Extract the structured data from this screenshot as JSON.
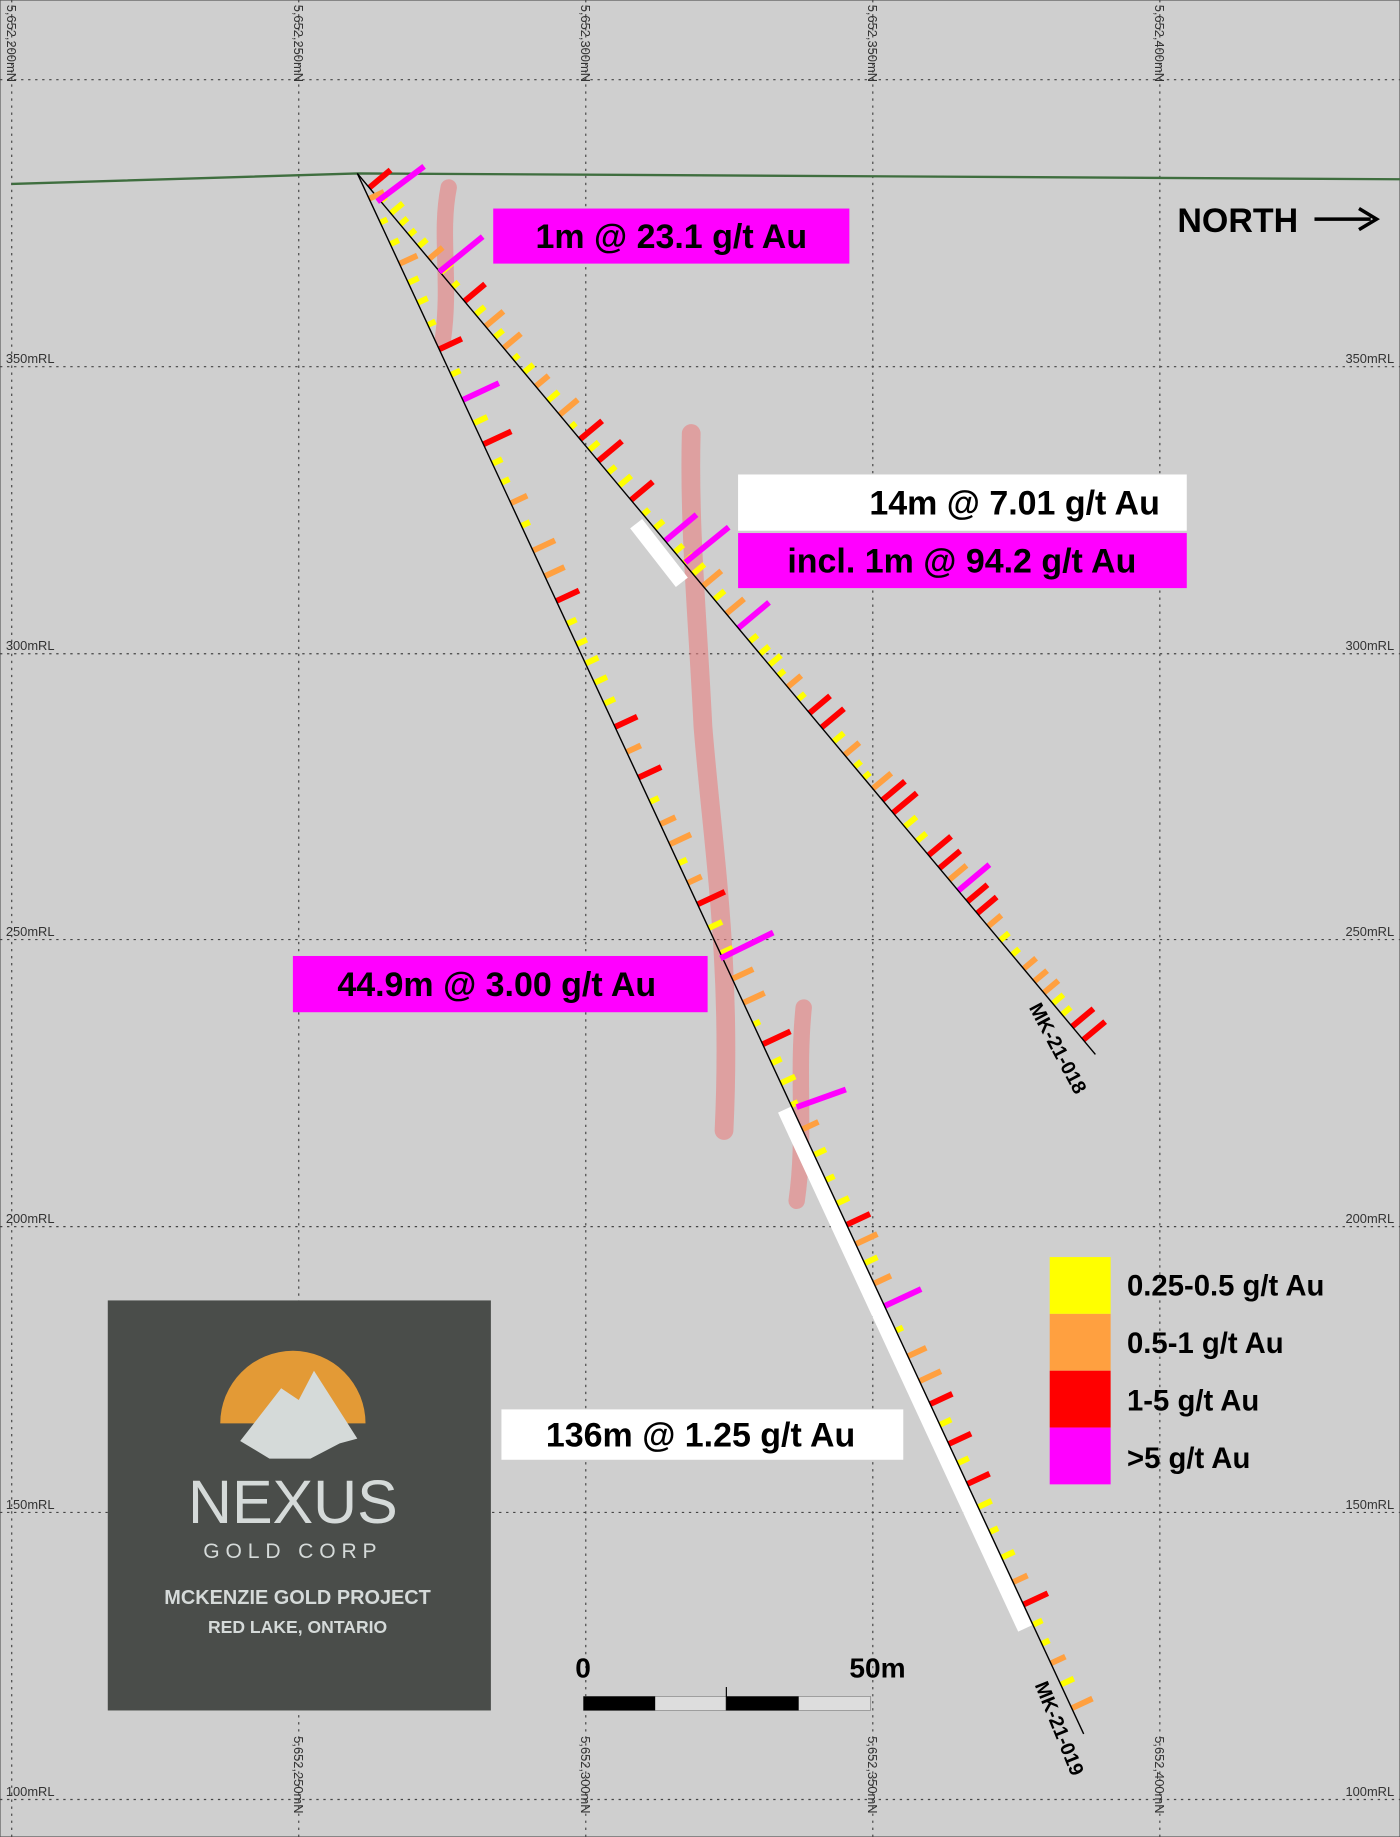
{
  "grid": {
    "eastings_top": [
      "5,652,200mN",
      "5,652,250mN",
      "5,652,300mN",
      "5,652,350mN",
      "5,652,400mN"
    ],
    "eastings_bottom": [
      "5,652,250mN",
      "5,652,300mN",
      "5,652,350mN",
      "5,652,400mN"
    ],
    "rl_left": [
      "350mRL",
      "300mRL",
      "250mRL",
      "200mRL",
      "150mRL",
      "100mRL"
    ],
    "rl_right": [
      "350mRL",
      "300mRL",
      "250mRL",
      "200mRL",
      "150mRL",
      "100mRL"
    ]
  },
  "north": "NORTH",
  "drillholes": [
    "MK-21-018",
    "MK-21-019"
  ],
  "intercepts": [
    "1m @ 23.1 g/t Au",
    "14m @ 7.01 g/t Au",
    "incl. 1m @ 94.2 g/t Au",
    "44.9m @ 3.00 g/t Au",
    "136m @ 1.25 g/t Au"
  ],
  "legend": [
    {
      "label": "0.25-0.5 g/t Au",
      "color": "#ffff00"
    },
    {
      "label": "0.5-1 g/t Au",
      "color": "#ffa040"
    },
    {
      "label": "1-5 g/t Au",
      "color": "#ff0000"
    },
    {
      "label": ">5 g/t Au",
      "color": "#ff00ff"
    }
  ],
  "logo": {
    "name": "NEXUS",
    "subtitle": "GOLD CORP",
    "project": "MCKENZIE GOLD PROJECT",
    "location": "RED LAKE, ONTARIO"
  },
  "scale_bar": {
    "start": "0",
    "end": "50m"
  }
}
